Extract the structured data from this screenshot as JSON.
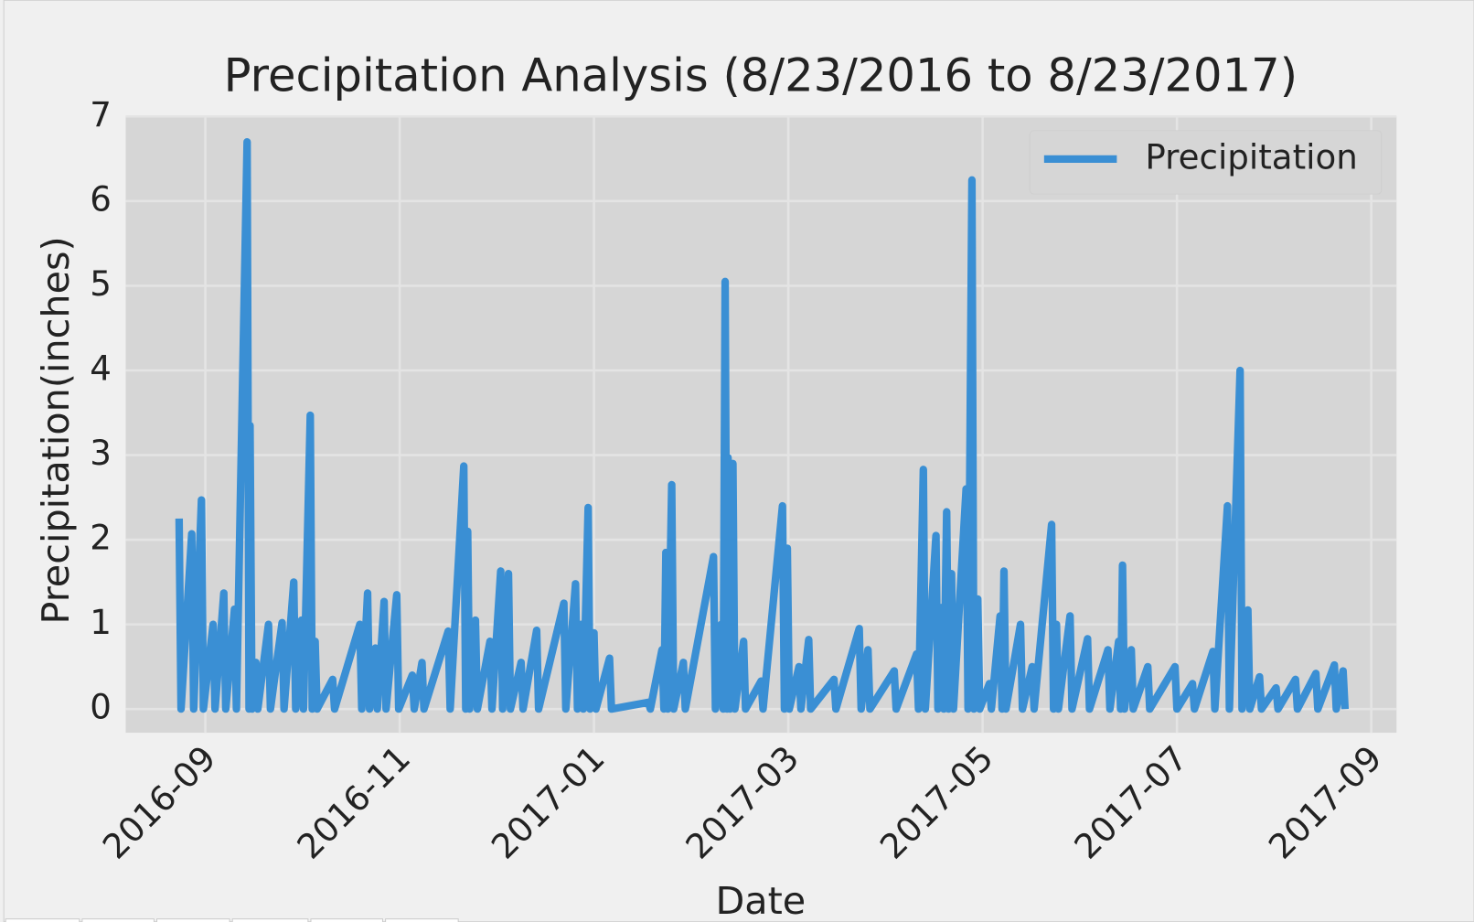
{
  "chart_data": {
    "type": "line",
    "title": "Precipitation Analysis (8/23/2016 to 8/23/2017)",
    "x_label": "Date",
    "y_label": "Precipitation(inches)",
    "x": [
      8.73,
      8.75,
      8.86,
      8.88,
      8.96,
      8.98,
      9.08,
      9.1,
      9.19,
      9.21,
      9.3,
      9.32,
      9.43,
      9.45,
      9.46,
      9.48,
      9.52,
      9.54,
      9.65,
      9.67,
      9.79,
      9.81,
      9.91,
      9.93,
      9.99,
      10.01,
      10.08,
      10.1,
      10.13,
      10.15,
      10.31,
      10.33,
      10.59,
      10.61,
      10.67,
      10.69,
      10.75,
      10.77,
      10.84,
      10.86,
      10.97,
      10.99,
      11.13,
      11.15,
      11.23,
      11.25,
      11.5,
      11.52,
      11.66,
      11.68,
      11.7,
      11.72,
      11.78,
      11.8,
      11.93,
      11.95,
      12.04,
      12.06,
      12.12,
      12.14,
      12.25,
      12.27,
      12.41,
      12.43,
      12.69,
      12.71,
      12.81,
      12.83,
      12.87,
      12.89,
      12.94,
      12.96,
      13,
      13.02,
      13.16,
      13.18,
      13.56,
      13.58,
      13.7,
      13.72,
      13.74,
      13.76,
      13.8,
      13.82,
      13.92,
      13.94,
      14.23,
      14.25,
      14.31,
      14.33,
      14.35,
      14.37,
      14.38,
      14.4,
      14.43,
      14.45,
      14.54,
      14.56,
      14.72,
      14.74,
      14.94,
      14.96,
      14.99,
      15.01,
      15.11,
      15.13,
      15.21,
      15.23,
      15.47,
      15.49,
      15.73,
      15.75,
      15.82,
      15.84,
      16.09,
      16.11,
      16.32,
      16.34,
      16.39,
      16.41,
      16.52,
      16.54,
      16.58,
      16.6,
      16.63,
      16.65,
      16.68,
      16.7,
      16.83,
      16.85,
      16.89,
      16.91,
      16.95,
      16.97,
      17.07,
      17.09,
      17.18,
      17.2,
      17.22,
      17.24,
      17.39,
      17.41,
      17.51,
      17.53,
      17.71,
      17.73,
      17.76,
      17.78,
      17.9,
      17.92,
      18.08,
      18.1,
      18.29,
      18.31,
      18.4,
      18.42,
      18.44,
      18.46,
      18.53,
      18.55,
      18.7,
      18.72,
      18.98,
      19,
      19.16,
      19.18,
      19.37,
      19.39,
      19.52,
      19.54,
      19.65,
      19.67,
      19.73,
      19.75,
      19.85,
      19.87,
      20.02,
      20.04,
      20.22,
      20.24,
      20.43,
      20.45,
      20.62,
      20.64,
      20.71,
      20.73
    ],
    "series": [
      {
        "name": "Precipitation",
        "color": "#3a8fd4",
        "values": [
          2.25,
          0,
          2.07,
          0,
          2.47,
          0,
          1.0,
          0,
          1.37,
          0,
          1.18,
          0,
          6.7,
          0,
          3.35,
          0,
          0.55,
          0,
          1.0,
          0,
          1.02,
          0,
          1.5,
          0,
          1.05,
          0,
          3.47,
          0,
          0.8,
          0,
          0.35,
          0,
          1.0,
          0,
          1.37,
          0,
          0.72,
          0,
          1.27,
          0,
          1.35,
          0,
          0.4,
          0,
          0.55,
          0,
          0.92,
          0,
          2.87,
          0,
          2.1,
          0,
          1.05,
          0,
          0.8,
          0,
          1.63,
          0,
          1.6,
          0,
          0.55,
          0,
          0.93,
          0,
          1.25,
          0,
          1.48,
          0,
          1.0,
          0,
          2.38,
          0,
          0.9,
          0,
          0.6,
          0,
          0.08,
          0,
          0.7,
          0,
          1.85,
          0,
          2.65,
          0,
          0.55,
          0,
          1.8,
          0,
          1.0,
          0,
          5.05,
          0,
          2.97,
          0,
          2.9,
          0,
          0.8,
          0,
          0.33,
          0,
          2.4,
          0,
          1.9,
          0,
          0.5,
          0,
          0.82,
          0,
          0.35,
          0,
          0.95,
          0,
          0.7,
          0,
          0.45,
          0,
          0.65,
          0,
          2.83,
          0,
          2.05,
          0,
          1.2,
          0,
          2.33,
          0,
          1.6,
          0,
          2.6,
          0,
          6.25,
          0,
          1.3,
          0,
          0.3,
          0,
          1.1,
          0,
          1.63,
          0,
          1.0,
          0,
          0.5,
          0,
          2.18,
          0,
          1.0,
          0,
          1.1,
          0,
          0.83,
          0,
          0.7,
          0,
          0.8,
          0,
          1.7,
          0,
          0.7,
          0,
          0.5,
          0,
          0.5,
          0,
          0.3,
          0,
          0.68,
          0,
          2.4,
          0,
          4.0,
          0,
          1.17,
          0,
          0.38,
          0,
          0.25,
          0,
          0.35,
          0,
          0.42,
          0,
          0.52,
          0,
          0.45,
          0
        ]
      }
    ],
    "xlim": [
      8.18,
      21.26
    ],
    "ylim": [
      -0.28,
      7
    ],
    "xticks": [
      {
        "value": 9,
        "label": "2016-09"
      },
      {
        "value": 11,
        "label": "2016-11"
      },
      {
        "value": 13,
        "label": "2017-01"
      },
      {
        "value": 15,
        "label": "2017-03"
      },
      {
        "value": 17,
        "label": "2017-05"
      },
      {
        "value": 19,
        "label": "2017-07"
      },
      {
        "value": 21,
        "label": "2017-09"
      }
    ],
    "yticks": [
      0,
      1,
      2,
      3,
      4,
      5,
      6,
      7
    ],
    "grid": true,
    "legend": "upper right"
  }
}
